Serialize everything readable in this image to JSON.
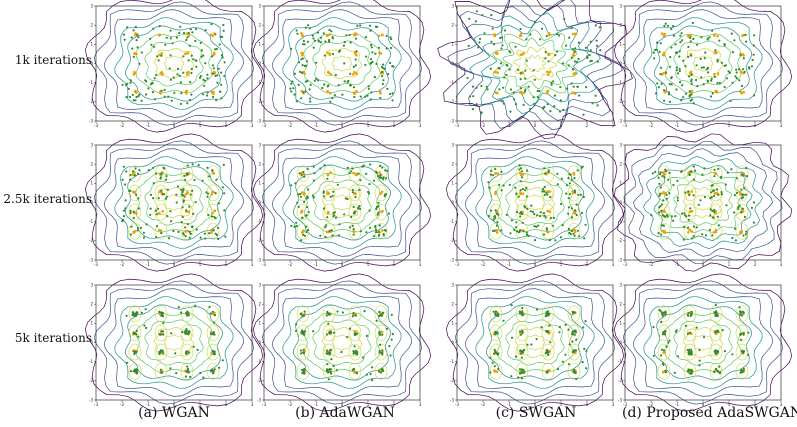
{
  "figure": {
    "row_labels": [
      "1k iterations",
      "2.5k iterations",
      "5k iterations"
    ],
    "captions": [
      "(a) WGAN",
      "(b) AdaWGAN",
      "(c) SWGAN",
      "(d) Proposed AdaSWGAN"
    ],
    "colors": {
      "real": "#f0a000",
      "generated": "#2e8b2e",
      "contours": [
        "#440154",
        "#3b528b",
        "#21908d",
        "#5dc863",
        "#c8d840"
      ]
    }
  },
  "chart_data": {
    "type": "scatter",
    "description_of_grid": "3 rows (training iterations) x 4 columns (methods) of contour + scatter panels",
    "methods": [
      "(a) WGAN",
      "(b) AdaWGAN",
      "(c) SWGAN",
      "(d) Proposed AdaSWGAN"
    ],
    "iterations": [
      "1k iterations",
      "2.5k iterations",
      "5k iterations"
    ],
    "xlim": [
      -3,
      3
    ],
    "ylim": [
      -3,
      3
    ],
    "xticks": [
      "-3",
      "-2",
      "-1",
      "0",
      "1",
      "2",
      "3"
    ],
    "yticks": [
      "3",
      "2",
      "1",
      "0",
      "-1",
      "-2",
      "-3"
    ],
    "real_data_centers": {
      "x": [
        -1.5,
        -0.5,
        0.5,
        1.5
      ],
      "y": [
        -1.5,
        -0.5,
        0.5,
        1.5
      ]
    },
    "series": [
      {
        "marker": "orange dots",
        "values": "4x4 grid of Gaussian modes centered at (±0.5, ±1.5)"
      },
      {
        "marker": "green dots",
        "values": "samples; increasingly concentrated on modes with more iterations"
      }
    ]
  }
}
